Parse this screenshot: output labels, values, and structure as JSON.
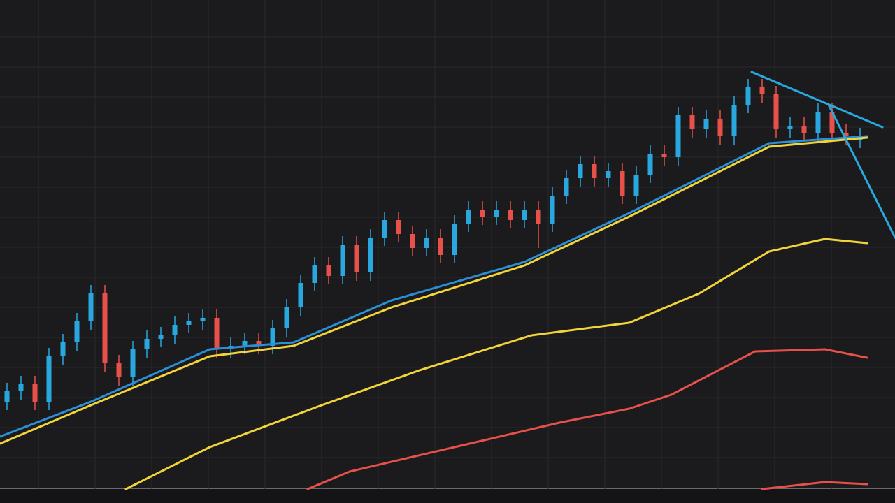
{
  "chart_data": {
    "type": "candlestick",
    "xlim": [
      0,
      1280
    ],
    "ylim": [
      0,
      700
    ],
    "grid": true,
    "xticks": [
      55,
      136,
      217,
      298,
      379,
      460,
      541,
      622,
      703,
      784,
      865,
      946,
      1027,
      1108,
      1189
    ],
    "yticks": [
      45,
      88,
      131,
      174,
      217,
      260,
      303,
      346,
      389,
      432,
      475,
      518,
      561,
      604,
      647
    ],
    "up_color": "#29a8e0",
    "down_color": "#e8504a",
    "x": [
      10,
      30,
      50,
      70,
      90,
      110,
      130,
      150,
      170,
      190,
      210,
      230,
      250,
      270,
      290,
      310,
      330,
      350,
      370,
      390,
      410,
      430,
      450,
      470,
      490,
      510,
      530,
      550,
      570,
      590,
      610,
      630,
      650,
      670,
      690,
      710,
      730,
      750,
      770,
      790,
      810,
      830,
      850,
      870,
      890,
      910,
      930,
      950,
      970,
      990,
      1010,
      1030,
      1050,
      1070,
      1090,
      1110,
      1130,
      1150,
      1170,
      1190,
      1210,
      1230
    ],
    "open": [
      125,
      140,
      150,
      125,
      190,
      210,
      240,
      280,
      180,
      160,
      200,
      215,
      220,
      235,
      240,
      245,
      200,
      205,
      212,
      205,
      230,
      260,
      295,
      320,
      305,
      350,
      310,
      360,
      385,
      365,
      345,
      360,
      335,
      380,
      400,
      390,
      400,
      385,
      400,
      380,
      420,
      445,
      465,
      445,
      455,
      420,
      450,
      480,
      475,
      535,
      515,
      530,
      505,
      550,
      575,
      565,
      515,
      520,
      510,
      540,
      510,
      500
    ],
    "close": [
      140,
      150,
      125,
      190,
      210,
      240,
      280,
      180,
      160,
      200,
      215,
      220,
      235,
      240,
      245,
      200,
      205,
      212,
      205,
      230,
      260,
      295,
      320,
      305,
      350,
      310,
      360,
      385,
      365,
      345,
      360,
      335,
      380,
      400,
      390,
      400,
      385,
      400,
      380,
      420,
      445,
      465,
      445,
      455,
      420,
      450,
      480,
      475,
      535,
      515,
      530,
      505,
      550,
      575,
      565,
      515,
      520,
      510,
      540,
      510,
      505,
      505
    ],
    "high": [
      152,
      162,
      162,
      202,
      222,
      252,
      292,
      292,
      192,
      212,
      227,
      232,
      247,
      252,
      257,
      257,
      217,
      224,
      224,
      242,
      272,
      307,
      332,
      332,
      362,
      362,
      372,
      397,
      397,
      377,
      372,
      372,
      392,
      412,
      412,
      412,
      412,
      412,
      412,
      432,
      457,
      477,
      477,
      467,
      467,
      462,
      492,
      492,
      547,
      547,
      542,
      542,
      562,
      587,
      587,
      577,
      532,
      532,
      552,
      552,
      522,
      517
    ],
    "low": [
      113,
      128,
      113,
      113,
      178,
      198,
      228,
      168,
      148,
      148,
      188,
      203,
      208,
      223,
      228,
      188,
      188,
      193,
      193,
      193,
      218,
      248,
      283,
      293,
      293,
      298,
      298,
      348,
      353,
      333,
      333,
      323,
      323,
      368,
      378,
      378,
      373,
      373,
      345,
      368,
      408,
      433,
      433,
      433,
      408,
      408,
      438,
      463,
      463,
      503,
      503,
      493,
      493,
      538,
      553,
      503,
      503,
      498,
      498,
      498,
      493,
      488
    ],
    "lines": [
      {
        "color": "#2a8fd6",
        "x": [
          0,
          130,
          300,
          420,
          560,
          750,
          900,
          1100,
          1240
        ],
        "values": [
          75,
          125,
          200,
          210,
          270,
          325,
          395,
          495,
          505
        ]
      },
      {
        "color": "#f2d43a",
        "x": [
          0,
          130,
          300,
          420,
          560,
          750,
          900,
          1100,
          1240
        ],
        "values": [
          65,
          120,
          190,
          205,
          260,
          320,
          390,
          490,
          503
        ]
      },
      {
        "color": "#f2d43a",
        "x": [
          180,
          300,
          460,
          600,
          760,
          900,
          1000,
          1100,
          1180,
          1240
        ],
        "values": [
          0,
          60,
          120,
          170,
          220,
          238,
          280,
          340,
          358,
          352
        ]
      },
      {
        "color": "#e8504a",
        "x": [
          440,
          500,
          650,
          800,
          900,
          960,
          1080,
          1180,
          1240
        ],
        "values": [
          0,
          25,
          60,
          95,
          115,
          135,
          197,
          200,
          188
        ]
      },
      {
        "color": "#e8504a",
        "x": [
          1090,
          1180,
          1240
        ],
        "values": [
          0,
          10,
          7
        ]
      },
      {
        "color": "#2aa8e0",
        "x": [
          1075,
          1262
        ],
        "values": [
          597,
          518
        ]
      },
      {
        "color": "#2aa8e0",
        "x": [
          1185,
          1280
        ],
        "values": [
          550,
          360
        ]
      }
    ]
  }
}
